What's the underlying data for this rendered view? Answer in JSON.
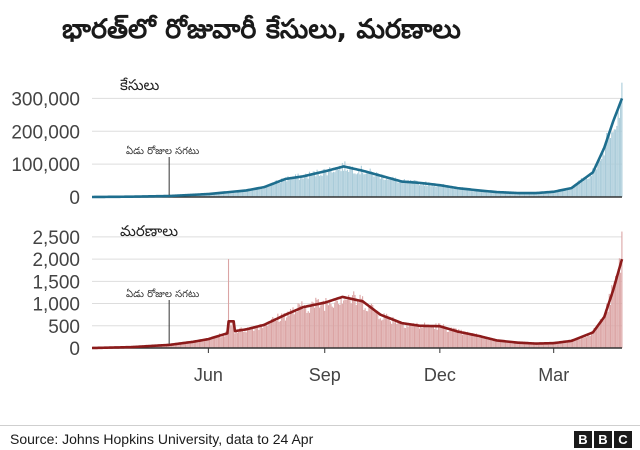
{
  "header": {
    "title": "భారత్‌లో రోజువారీ కేసులు, మరణాలు"
  },
  "footer": {
    "source": "Source: Johns Hopkins University, data to 24 Apr",
    "logo_letters": [
      "B",
      "B",
      "C"
    ]
  },
  "chart_data": [
    {
      "type": "bar",
      "panel_label": "కేసులు",
      "annotation": "ఏడు రోజుల సగటు",
      "annotation_date": "2020-05-01",
      "x_start": "2020-03-01",
      "x_end": "2021-04-24",
      "x_ticks": [
        {
          "date": "2020-06-01",
          "label": "Jun"
        },
        {
          "date": "2020-09-01",
          "label": "Sep"
        },
        {
          "date": "2020-12-01",
          "label": "Dec"
        },
        {
          "date": "2021-03-01",
          "label": "Mar"
        }
      ],
      "ylim": [
        0,
        350000
      ],
      "y_ticks": [
        {
          "value": 0,
          "label": "0"
        },
        {
          "value": 100000,
          "label": "100,000"
        },
        {
          "value": 200000,
          "label": "200,000"
        },
        {
          "value": 300000,
          "label": "300,000"
        }
      ],
      "bar_color": "#a9cbd9",
      "line_color": "#1e6e8e",
      "series": [
        {
          "kind": "seven-day-average",
          "points": [
            [
              "2020-03-01",
              0
            ],
            [
              "2020-04-01",
              1000
            ],
            [
              "2020-05-01",
              3000
            ],
            [
              "2020-06-01",
              9000
            ],
            [
              "2020-07-01",
              20000
            ],
            [
              "2020-07-15",
              30000
            ],
            [
              "2020-08-01",
              55000
            ],
            [
              "2020-08-15",
              63000
            ],
            [
              "2020-09-01",
              78000
            ],
            [
              "2020-09-16",
              93000
            ],
            [
              "2020-10-01",
              80000
            ],
            [
              "2020-10-15",
              65000
            ],
            [
              "2020-11-01",
              47000
            ],
            [
              "2020-11-15",
              43000
            ],
            [
              "2020-12-01",
              36000
            ],
            [
              "2020-12-15",
              27000
            ],
            [
              "2021-01-01",
              20000
            ],
            [
              "2021-01-15",
              15000
            ],
            [
              "2021-02-01",
              12000
            ],
            [
              "2021-02-15",
              12000
            ],
            [
              "2021-03-01",
              16000
            ],
            [
              "2021-03-15",
              27000
            ],
            [
              "2021-04-01",
              75000
            ],
            [
              "2021-04-10",
              150000
            ],
            [
              "2021-04-17",
              230000
            ],
            [
              "2021-04-24",
              300000
            ]
          ]
        },
        {
          "kind": "daily",
          "points": [
            [
              "2021-04-24",
              348000
            ]
          ]
        }
      ]
    },
    {
      "type": "bar",
      "panel_label": "మరణాలు",
      "annotation": "ఏడు రోజుల సగటు",
      "annotation_date": "2020-05-01",
      "x_start": "2020-03-01",
      "x_end": "2021-04-24",
      "x_ticks": [
        {
          "date": "2020-06-01",
          "label": "Jun"
        },
        {
          "date": "2020-09-01",
          "label": "Sep"
        },
        {
          "date": "2020-12-01",
          "label": "Dec"
        },
        {
          "date": "2021-03-01",
          "label": "Mar"
        }
      ],
      "ylim": [
        0,
        2700
      ],
      "y_ticks": [
        {
          "value": 0,
          "label": "0"
        },
        {
          "value": 500,
          "label": "500"
        },
        {
          "value": 1000,
          "label": "1,000"
        },
        {
          "value": 1500,
          "label": "1,500"
        },
        {
          "value": 2000,
          "label": "2,000"
        },
        {
          "value": 2500,
          "label": "2,500"
        }
      ],
      "bar_color": "#dba4a4",
      "line_color": "#8c1b1b",
      "series": [
        {
          "kind": "seven-day-average",
          "points": [
            [
              "2020-03-01",
              0
            ],
            [
              "2020-04-01",
              20
            ],
            [
              "2020-05-01",
              70
            ],
            [
              "2020-05-20",
              140
            ],
            [
              "2020-06-01",
              200
            ],
            [
              "2020-06-10",
              280
            ],
            [
              "2020-06-16",
              330
            ],
            [
              "2020-06-17",
              600
            ],
            [
              "2020-06-21",
              600
            ],
            [
              "2020-06-22",
              380
            ],
            [
              "2020-07-01",
              420
            ],
            [
              "2020-07-15",
              520
            ],
            [
              "2020-08-01",
              750
            ],
            [
              "2020-08-15",
              920
            ],
            [
              "2020-09-01",
              1020
            ],
            [
              "2020-09-15",
              1150
            ],
            [
              "2020-10-01",
              1050
            ],
            [
              "2020-10-15",
              750
            ],
            [
              "2020-11-01",
              560
            ],
            [
              "2020-11-15",
              500
            ],
            [
              "2020-12-01",
              490
            ],
            [
              "2020-12-15",
              370
            ],
            [
              "2021-01-01",
              270
            ],
            [
              "2021-01-15",
              170
            ],
            [
              "2021-02-01",
              120
            ],
            [
              "2021-02-15",
              100
            ],
            [
              "2021-03-01",
              110
            ],
            [
              "2021-03-15",
              160
            ],
            [
              "2021-04-01",
              350
            ],
            [
              "2021-04-10",
              700
            ],
            [
              "2021-04-17",
              1300
            ],
            [
              "2021-04-24",
              2000
            ]
          ]
        },
        {
          "kind": "daily",
          "points": [
            [
              "2020-06-17",
              2000
            ],
            [
              "2021-04-24",
              2620
            ]
          ]
        }
      ]
    }
  ]
}
